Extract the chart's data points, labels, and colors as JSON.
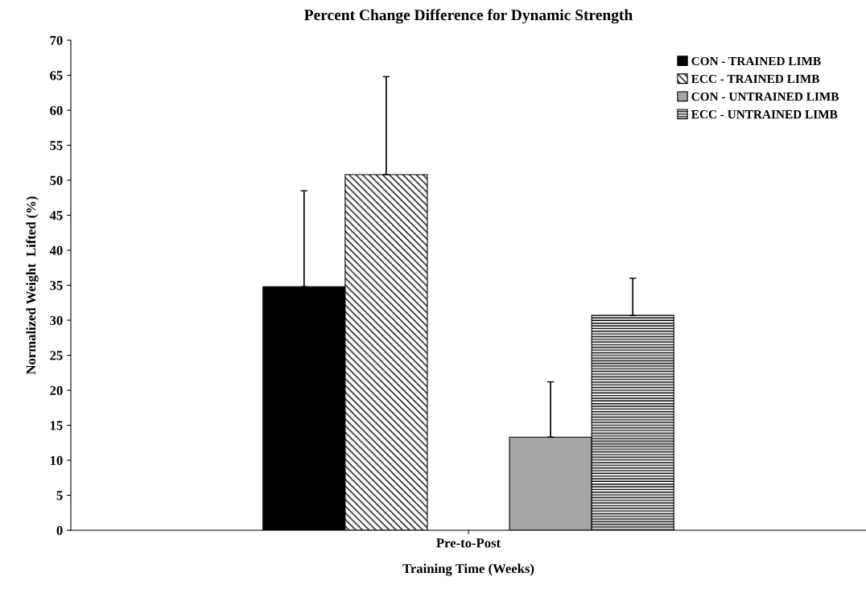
{
  "chart_data": {
    "type": "bar",
    "title": "Percent Change Difference for Dynamic Strength",
    "xlabel": "Training Time (Weeks)",
    "ylabel": "Normalized Weight  Lifted (%)",
    "categories": [
      "Pre-to-Post"
    ],
    "ylim": [
      0,
      70
    ],
    "yticks": [
      0,
      5,
      10,
      15,
      20,
      25,
      30,
      35,
      40,
      45,
      50,
      55,
      60,
      65,
      70
    ],
    "grid": false,
    "legend": "top right",
    "series": [
      {
        "name": "CON - TRAINED LIMB",
        "color": "#000000",
        "values": [
          34.8
        ],
        "errors": [
          [
            34.8,
            48.5
          ]
        ]
      },
      {
        "name": "ECC - TRAINED LIMB",
        "color": "#000000",
        "values": [
          50.8
        ],
        "errors": [
          [
            50.8,
            64.8
          ]
        ]
      },
      {
        "name": "CON - UNTRAINED LIMB",
        "color": "#a6a6a6",
        "values": [
          13.3
        ],
        "errors": [
          [
            13.3,
            21.2
          ]
        ]
      },
      {
        "name": "ECC - UNTRAINED LIMB",
        "color": "#000000",
        "values": [
          30.7
        ],
        "errors": [
          [
            30.7,
            36.0
          ]
        ]
      }
    ]
  }
}
